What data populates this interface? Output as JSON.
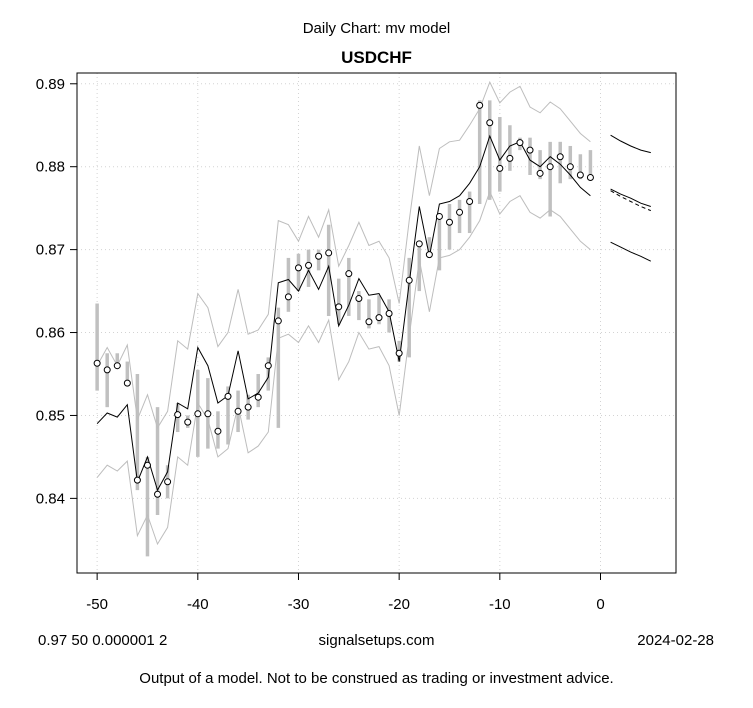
{
  "header": {
    "subtitle": "Daily Chart: mv model",
    "title": "USDCHF"
  },
  "footer": {
    "params": "0.97 50 0.000001 2",
    "site": "signalsetups.com",
    "date": "2024-02-28",
    "disclaimer": "Output of a model.  Not to be construed as trading or investment advice."
  },
  "chart_data": {
    "type": "line",
    "title": "USDCHF",
    "subtitle": "Daily Chart: mv model",
    "xlim": [
      -52,
      7.5
    ],
    "ylim": [
      0.831,
      0.8913
    ],
    "x_ticks": [
      -50,
      -40,
      -30,
      -20,
      -10,
      0
    ],
    "y_ticks": [
      0.84,
      0.85,
      0.86,
      0.87,
      0.88,
      0.89
    ],
    "grid": true,
    "colors": {
      "ranges": "#c0c0c0",
      "bands": "#bdbdbd",
      "model": "#000000",
      "points": "#000000"
    },
    "x": [
      -50,
      -49,
      -48,
      -47,
      -46,
      -45,
      -44,
      -43,
      -42,
      -41,
      -40,
      -39,
      -38,
      -37,
      -36,
      -35,
      -34,
      -33,
      -32,
      -31,
      -30,
      -29,
      -28,
      -27,
      -26,
      -25,
      -24,
      -23,
      -22,
      -21,
      -20,
      -19,
      -18,
      -17,
      -16,
      -15,
      -14,
      -13,
      -12,
      -11,
      -10,
      -9,
      -8,
      -7,
      -6,
      -5,
      -4,
      -3,
      -2,
      -1
    ],
    "close": [
      0.8563,
      0.8555,
      0.856,
      0.8539,
      0.8422,
      0.844,
      0.8405,
      0.842,
      0.8501,
      0.8492,
      0.8502,
      0.8502,
      0.8481,
      0.8523,
      0.8505,
      0.851,
      0.8522,
      0.856,
      0.8614,
      0.8643,
      0.8678,
      0.8681,
      0.8692,
      0.8696,
      0.8631,
      0.8671,
      0.8641,
      0.8613,
      0.8618,
      0.8623,
      0.8575,
      0.8663,
      0.8707,
      0.8694,
      0.874,
      0.8733,
      0.8745,
      0.8758,
      0.8874,
      0.8853,
      0.8798,
      0.881,
      0.8829,
      0.882,
      0.8792,
      0.88,
      0.8812,
      0.88,
      0.879,
      0.8787
    ],
    "range_high": [
      0.8635,
      0.8575,
      0.8575,
      0.8565,
      0.855,
      0.845,
      0.851,
      0.844,
      0.8515,
      0.85,
      0.8555,
      0.8545,
      0.8505,
      0.8535,
      0.853,
      0.8525,
      0.855,
      0.857,
      0.863,
      0.869,
      0.8695,
      0.87,
      0.87,
      0.873,
      0.8665,
      0.869,
      0.865,
      0.864,
      0.8645,
      0.864,
      0.859,
      0.869,
      0.871,
      0.8715,
      0.874,
      0.8755,
      0.876,
      0.877,
      0.888,
      0.888,
      0.886,
      0.885,
      0.8835,
      0.8835,
      0.882,
      0.883,
      0.883,
      0.8825,
      0.8815,
      0.882
    ],
    "range_low": [
      0.853,
      0.851,
      0.856,
      0.854,
      0.841,
      0.833,
      0.838,
      0.84,
      0.848,
      0.8485,
      0.845,
      0.846,
      0.846,
      0.8465,
      0.848,
      0.8495,
      0.851,
      0.853,
      0.8485,
      0.8625,
      0.865,
      0.8655,
      0.8675,
      0.862,
      0.861,
      0.862,
      0.8615,
      0.8605,
      0.861,
      0.86,
      0.8565,
      0.857,
      0.865,
      0.869,
      0.8675,
      0.87,
      0.872,
      0.872,
      0.8755,
      0.876,
      0.877,
      0.8795,
      0.882,
      0.879,
      0.8785,
      0.874,
      0.878,
      0.8785,
      0.8785,
      0.8785
    ],
    "model": [
      0.849,
      0.8503,
      0.8498,
      0.8513,
      0.842,
      0.845,
      0.841,
      0.8432,
      0.8515,
      0.8508,
      0.8582,
      0.856,
      0.8515,
      0.8524,
      0.8578,
      0.852,
      0.8527,
      0.8546,
      0.866,
      0.8664,
      0.865,
      0.8675,
      0.8652,
      0.868,
      0.8608,
      0.8633,
      0.8665,
      0.8645,
      0.8647,
      0.8625,
      0.8565,
      0.866,
      0.8752,
      0.8692,
      0.8755,
      0.8758,
      0.8765,
      0.878,
      0.88,
      0.8837,
      0.8808,
      0.8825,
      0.883,
      0.8808,
      0.88,
      0.8812,
      0.8803,
      0.879,
      0.8775,
      0.8765
    ],
    "upper_band": [
      0.856,
      0.8582,
      0.856,
      0.8585,
      0.8495,
      0.8525,
      0.8485,
      0.8505,
      0.859,
      0.858,
      0.8647,
      0.863,
      0.8583,
      0.86,
      0.8652,
      0.8598,
      0.8603,
      0.8622,
      0.8735,
      0.873,
      0.871,
      0.874,
      0.8715,
      0.8748,
      0.868,
      0.8705,
      0.8733,
      0.8705,
      0.871,
      0.869,
      0.8635,
      0.8735,
      0.8825,
      0.8765,
      0.8822,
      0.883,
      0.8832,
      0.885,
      0.887,
      0.8902,
      0.8877,
      0.889,
      0.8897,
      0.8872,
      0.8865,
      0.8878,
      0.887,
      0.8855,
      0.884,
      0.883
    ],
    "lower_band": [
      0.8425,
      0.844,
      0.8433,
      0.8445,
      0.8355,
      0.838,
      0.8345,
      0.8365,
      0.845,
      0.844,
      0.8515,
      0.8495,
      0.845,
      0.846,
      0.8512,
      0.8455,
      0.8463,
      0.848,
      0.8593,
      0.8598,
      0.8588,
      0.8608,
      0.8588,
      0.8615,
      0.8543,
      0.8565,
      0.86,
      0.858,
      0.8583,
      0.856,
      0.85,
      0.8595,
      0.8688,
      0.8625,
      0.869,
      0.8693,
      0.87,
      0.8715,
      0.8735,
      0.877,
      0.8743,
      0.8758,
      0.8765,
      0.8745,
      0.8738,
      0.8748,
      0.874,
      0.8725,
      0.871,
      0.87
    ],
    "forecast": {
      "x": [
        1,
        2,
        3,
        4,
        5
      ],
      "upper": [
        0.8838,
        0.8831,
        0.8825,
        0.882,
        0.8817
      ],
      "center": [
        0.8773,
        0.8767,
        0.8762,
        0.8756,
        0.8752
      ],
      "center_dashed": [
        0.8771,
        0.8764,
        0.8758,
        0.8752,
        0.8747
      ],
      "lower": [
        0.8709,
        0.8703,
        0.8697,
        0.8692,
        0.8686
      ]
    }
  }
}
